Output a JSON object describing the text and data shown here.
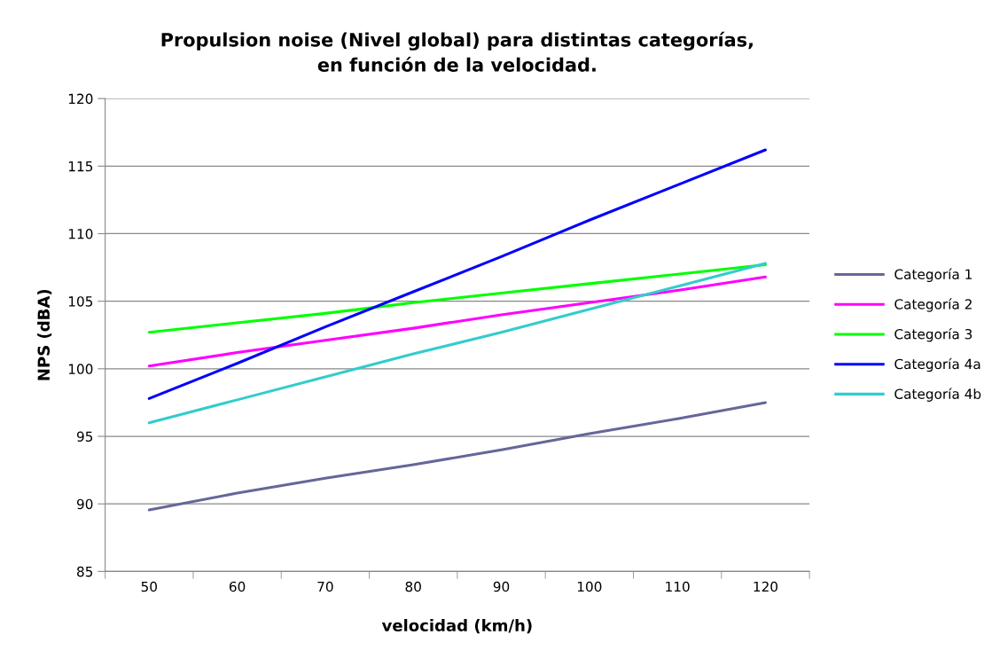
{
  "chart_data": {
    "type": "line",
    "title": "Propulsion noise (Nivel global) para distintas categorías,\nen función de la velocidad.",
    "xlabel": "velocidad (km/h)",
    "ylabel": "NPS (dBA)",
    "categories": [
      "50",
      "60",
      "70",
      "80",
      "90",
      "100",
      "110",
      "120"
    ],
    "series": [
      {
        "name": "Categoría 1",
        "color": "#666699",
        "values": [
          89.55,
          90.8,
          91.9,
          92.9,
          94.0,
          95.2,
          96.3,
          97.5
        ]
      },
      {
        "name": "Categoría 2",
        "color": "#ff00ff",
        "values": [
          100.2,
          101.2,
          102.1,
          103.0,
          104.0,
          104.9,
          105.8,
          106.8
        ]
      },
      {
        "name": "Categoría 3",
        "color": "#00ff00",
        "values": [
          102.7,
          103.4,
          104.1,
          104.9,
          105.6,
          106.3,
          107.0,
          107.7
        ]
      },
      {
        "name": "Categoría 4a",
        "color": "#0000ff",
        "values": [
          97.8,
          100.4,
          103.1,
          105.7,
          108.3,
          111.0,
          113.6,
          116.2
        ]
      },
      {
        "name": "Categoría 4b",
        "color": "#33cccc",
        "values": [
          96.0,
          97.7,
          99.4,
          101.1,
          102.7,
          104.4,
          106.1,
          107.8
        ]
      }
    ],
    "ylim": [
      85,
      120
    ],
    "yticks": [
      85,
      90,
      95,
      100,
      105,
      110,
      115,
      120
    ],
    "grid": "y",
    "legend": "right",
    "marker": "none",
    "line_style": "solid"
  }
}
